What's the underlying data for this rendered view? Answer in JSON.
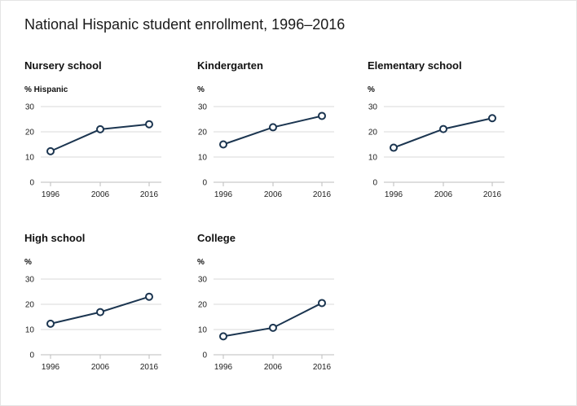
{
  "title": "National Hispanic student enrollment, 1996–2016",
  "colors": {
    "line": "#1b3550",
    "grid": "#d9d9d9",
    "axis": "#bdbdbd"
  },
  "chart_data": [
    {
      "type": "line",
      "title": "Nursery school",
      "ylabel": "% Hispanic",
      "x": [
        "1996",
        "2006",
        "2016"
      ],
      "series": [
        {
          "values": [
            12.3,
            21.0,
            23.0
          ]
        }
      ],
      "yticks": [
        0,
        10,
        20,
        30
      ],
      "ylim": [
        0,
        30
      ],
      "grid": true
    },
    {
      "type": "line",
      "title": "Kindergarten",
      "ylabel": "%",
      "x": [
        "1996",
        "2006",
        "2016"
      ],
      "series": [
        {
          "values": [
            15.0,
            21.8,
            26.3
          ]
        }
      ],
      "yticks": [
        0,
        10,
        20,
        30
      ],
      "ylim": [
        0,
        30
      ],
      "grid": true
    },
    {
      "type": "line",
      "title": "Elementary school",
      "ylabel": "%",
      "x": [
        "1996",
        "2006",
        "2016"
      ],
      "series": [
        {
          "values": [
            13.7,
            21.1,
            25.4
          ]
        }
      ],
      "yticks": [
        0,
        10,
        20,
        30
      ],
      "ylim": [
        0,
        30
      ],
      "grid": true
    },
    {
      "type": "line",
      "title": "High school",
      "ylabel": "%",
      "x": [
        "1996",
        "2006",
        "2016"
      ],
      "series": [
        {
          "values": [
            12.3,
            16.9,
            23.0
          ]
        }
      ],
      "yticks": [
        0,
        10,
        20,
        30
      ],
      "ylim": [
        0,
        30
      ],
      "grid": true
    },
    {
      "type": "line",
      "title": "College",
      "ylabel": "%",
      "x": [
        "1996",
        "2006",
        "2016"
      ],
      "series": [
        {
          "values": [
            7.3,
            10.7,
            20.5
          ]
        }
      ],
      "yticks": [
        0,
        10,
        20,
        30
      ],
      "ylim": [
        0,
        30
      ],
      "grid": true
    }
  ]
}
